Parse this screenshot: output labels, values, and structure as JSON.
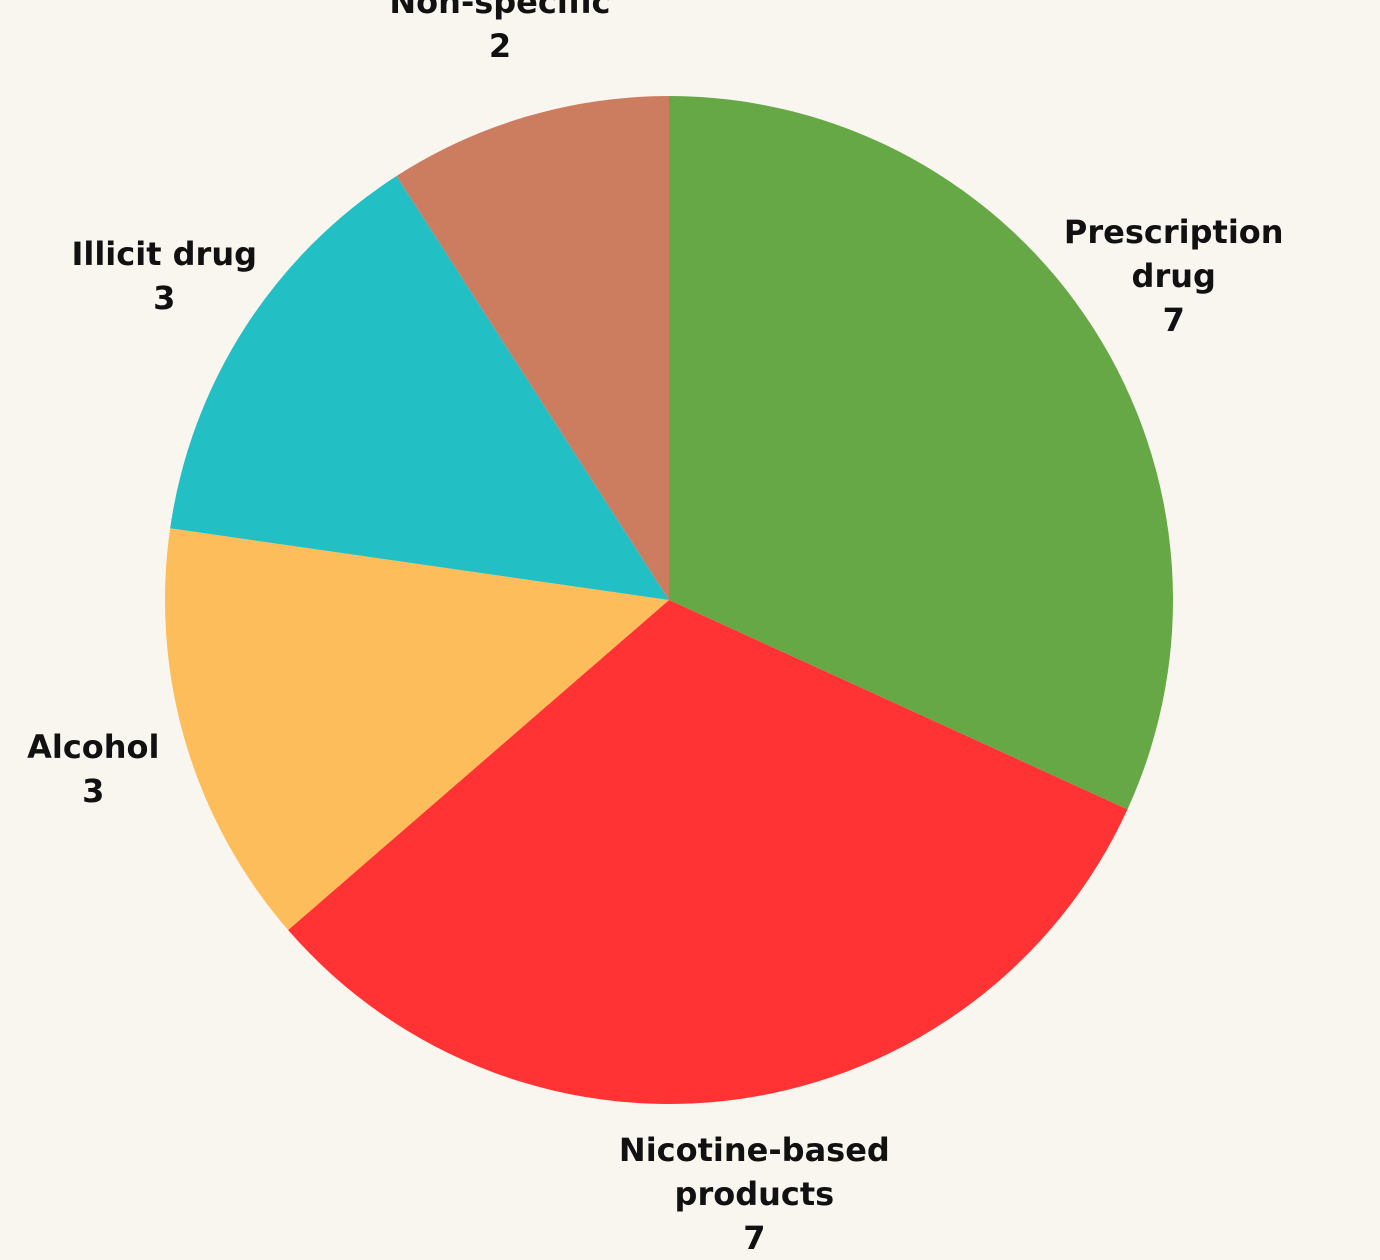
{
  "chart_data": {
    "type": "pie",
    "categories": [
      "Prescription drug",
      "Nicotine-based products",
      "Alcohol",
      "Illicit drug",
      "Non-specific"
    ],
    "values": [
      7,
      7,
      3,
      3,
      2
    ],
    "colors": [
      "#66a845",
      "#ff3333",
      "#fdbd5a",
      "#22bfc4",
      "#cc7d60"
    ]
  }
}
